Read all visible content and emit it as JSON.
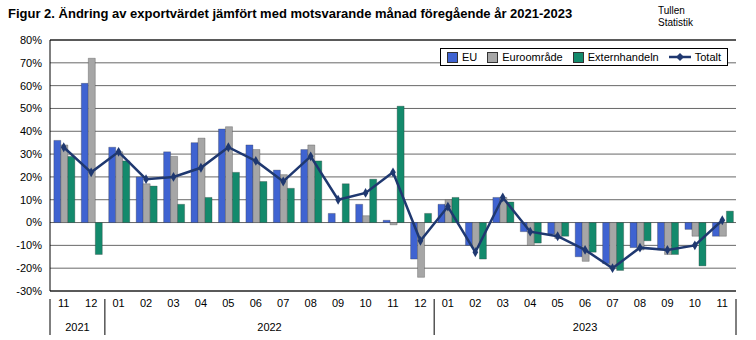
{
  "chart_data": {
    "type": "bar",
    "title": "Figur 2. Ändring av exportvärdet jämfört med motsvarande månad föregående år 2021-2023",
    "source": [
      "Tullen",
      "Statistik"
    ],
    "categories": [
      "11",
      "12",
      "01",
      "02",
      "03",
      "04",
      "05",
      "06",
      "07",
      "08",
      "09",
      "10",
      "11",
      "12",
      "01",
      "02",
      "03",
      "04",
      "05",
      "06",
      "07",
      "08",
      "09",
      "10",
      "11"
    ],
    "years": [
      "2021",
      "2021",
      "2022",
      "2022",
      "2022",
      "2022",
      "2022",
      "2022",
      "2022",
      "2022",
      "2022",
      "2022",
      "2022",
      "2022",
      "2023",
      "2023",
      "2023",
      "2023",
      "2023",
      "2023",
      "2023",
      "2023",
      "2023",
      "2023",
      "2023"
    ],
    "series": [
      {
        "name": "EU",
        "type": "bar",
        "color": "#3f63d1",
        "values": [
          36,
          61,
          33,
          20,
          31,
          35,
          41,
          34,
          23,
          32,
          4,
          8,
          1,
          -16,
          8,
          -10,
          11,
          -4,
          -5,
          -15,
          -18,
          -11,
          -12,
          -3,
          -6
        ]
      },
      {
        "name": "Euroområde",
        "type": "bar",
        "color": "#a6a6a6",
        "values": [
          34,
          72,
          31,
          17,
          29,
          37,
          42,
          32,
          21,
          34,
          0,
          3,
          -1,
          -24,
          10,
          -11,
          11,
          -10,
          -7,
          -17,
          -20,
          -12,
          -14,
          -6,
          -6
        ]
      },
      {
        "name": "Externhandeln",
        "type": "bar",
        "color": "#138a6c",
        "values": [
          29,
          -14,
          27,
          16,
          8,
          11,
          22,
          18,
          15,
          27,
          17,
          19,
          51,
          4,
          11,
          -16,
          9,
          -9,
          -6,
          -13,
          -21,
          -8,
          -14,
          -19,
          5
        ]
      },
      {
        "name": "Totalt",
        "type": "line",
        "color": "#1f3870",
        "marker": "diamond",
        "values": [
          33,
          22,
          31,
          19,
          20,
          24,
          33,
          27,
          18,
          29,
          10,
          13,
          22,
          -8,
          7,
          -13,
          11,
          -4,
          -6,
          -12,
          -20,
          -11,
          -12,
          -10,
          1
        ]
      }
    ],
    "ylim": [
      -30,
      80
    ],
    "yticks": [
      {
        "value": -30,
        "label": "-30%"
      },
      {
        "value": -20,
        "label": "-20%"
      },
      {
        "value": -10,
        "label": "-10%"
      },
      {
        "value": 0,
        "label": "0%"
      },
      {
        "value": 10,
        "label": "10%"
      },
      {
        "value": 20,
        "label": "20%"
      },
      {
        "value": 30,
        "label": "30%"
      },
      {
        "value": 40,
        "label": "40%"
      },
      {
        "value": 50,
        "label": "50%"
      },
      {
        "value": 60,
        "label": "60%"
      },
      {
        "value": 70,
        "label": "70%"
      },
      {
        "value": 80,
        "label": "80%"
      }
    ],
    "grid": true,
    "legend": "top right"
  }
}
